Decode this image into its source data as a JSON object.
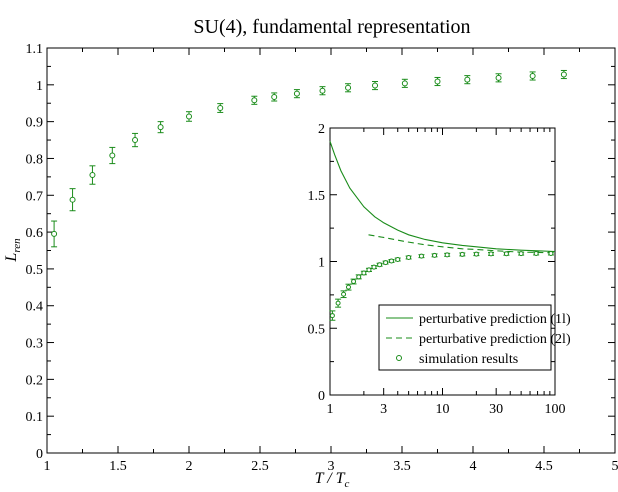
{
  "colors": {
    "series": "#1a8c1a",
    "axis": "#000000",
    "background": "#ffffff"
  },
  "chart_data": [
    {
      "type": "scatter",
      "title": "SU(4), fundamental representation",
      "xlabel_main": "T / T",
      "xlabel_sub": "c",
      "ylabel_main": "L",
      "ylabel_sub": "ren",
      "xlim": [
        1,
        5
      ],
      "ylim": [
        0,
        1.1
      ],
      "x_ticks": [
        1,
        1.5,
        2,
        2.5,
        3,
        3.5,
        4,
        4.5,
        5
      ],
      "x_tick_labels": [
        "1",
        "1.5",
        "2",
        "2.5",
        "3",
        "3.5",
        "4",
        "4.5",
        "5"
      ],
      "y_ticks": [
        0,
        0.1,
        0.2,
        0.3,
        0.4,
        0.5,
        0.6,
        0.7,
        0.8,
        0.9,
        1,
        1.1
      ],
      "y_tick_labels": [
        "0",
        "0.1",
        "0.2",
        "0.3",
        "0.4",
        "0.5",
        "0.6",
        "0.7",
        "0.8",
        "0.9",
        "1",
        "1.1"
      ],
      "series": [
        {
          "name": "simulation results",
          "points": [
            {
              "x": 1.05,
              "y": 0.595,
              "err": 0.035
            },
            {
              "x": 1.18,
              "y": 0.688,
              "err": 0.03
            },
            {
              "x": 1.32,
              "y": 0.755,
              "err": 0.025
            },
            {
              "x": 1.46,
              "y": 0.808,
              "err": 0.022
            },
            {
              "x": 1.62,
              "y": 0.85,
              "err": 0.018
            },
            {
              "x": 1.8,
              "y": 0.885,
              "err": 0.015
            },
            {
              "x": 2.0,
              "y": 0.914,
              "err": 0.013
            },
            {
              "x": 2.22,
              "y": 0.937,
              "err": 0.012
            },
            {
              "x": 2.46,
              "y": 0.958,
              "err": 0.011
            },
            {
              "x": 2.6,
              "y": 0.967,
              "err": 0.011
            },
            {
              "x": 2.76,
              "y": 0.976,
              "err": 0.011
            },
            {
              "x": 2.94,
              "y": 0.984,
              "err": 0.011
            },
            {
              "x": 3.12,
              "y": 0.992,
              "err": 0.011
            },
            {
              "x": 3.31,
              "y": 0.998,
              "err": 0.011
            },
            {
              "x": 3.52,
              "y": 1.004,
              "err": 0.011
            },
            {
              "x": 3.75,
              "y": 1.009,
              "err": 0.011
            },
            {
              "x": 3.96,
              "y": 1.014,
              "err": 0.011
            },
            {
              "x": 4.18,
              "y": 1.019,
              "err": 0.011
            },
            {
              "x": 4.42,
              "y": 1.024,
              "err": 0.011
            },
            {
              "x": 4.64,
              "y": 1.028,
              "err": 0.011
            }
          ]
        }
      ]
    },
    {
      "type": "line",
      "title": "",
      "xscale": "log",
      "xlim": [
        1,
        100
      ],
      "ylim": [
        0,
        2
      ],
      "x_ticks": [
        1,
        3,
        10,
        30,
        100
      ],
      "x_tick_labels": [
        "1",
        "3",
        "10",
        "30",
        "100"
      ],
      "y_ticks": [
        0,
        0.5,
        1,
        1.5,
        2
      ],
      "y_tick_labels": [
        "0",
        "0.5",
        "1",
        "1.5",
        "2"
      ],
      "legend": {
        "position": "lower-right",
        "entries": [
          {
            "label": "perturbative prediction (1l)",
            "style": "solid"
          },
          {
            "label": "perturbative prediction (2l)",
            "style": "dashed"
          },
          {
            "label": "simulation results",
            "style": "marker"
          }
        ]
      },
      "series": [
        {
          "name": "perturbative prediction (1l)",
          "style": "solid",
          "x": [
            1,
            1.1,
            1.25,
            1.5,
            2,
            2.5,
            3,
            4,
            5,
            7,
            10,
            15,
            20,
            30,
            50,
            70,
            100
          ],
          "y": [
            1.9,
            1.8,
            1.68,
            1.55,
            1.41,
            1.335,
            1.29,
            1.235,
            1.2,
            1.165,
            1.14,
            1.12,
            1.11,
            1.095,
            1.085,
            1.08,
            1.075
          ]
        },
        {
          "name": "perturbative prediction (2l)",
          "style": "dashed",
          "x": [
            2.2,
            3,
            4,
            5,
            7,
            10,
            15,
            20,
            30,
            50,
            70,
            100
          ],
          "y": [
            1.2,
            1.18,
            1.16,
            1.145,
            1.125,
            1.11,
            1.095,
            1.09,
            1.08,
            1.07,
            1.068,
            1.065
          ]
        },
        {
          "name": "simulation results",
          "style": "marker",
          "points": [
            {
              "x": 1.05,
              "y": 0.595,
              "err": 0.035
            },
            {
              "x": 1.18,
              "y": 0.688,
              "err": 0.03
            },
            {
              "x": 1.32,
              "y": 0.755,
              "err": 0.025
            },
            {
              "x": 1.46,
              "y": 0.808,
              "err": 0.022
            },
            {
              "x": 1.62,
              "y": 0.85,
              "err": 0.018
            },
            {
              "x": 1.8,
              "y": 0.885,
              "err": 0.015
            },
            {
              "x": 2.0,
              "y": 0.914,
              "err": 0.013
            },
            {
              "x": 2.22,
              "y": 0.937,
              "err": 0.012
            },
            {
              "x": 2.46,
              "y": 0.958,
              "err": 0.011
            },
            {
              "x": 2.76,
              "y": 0.976,
              "err": 0.011
            },
            {
              "x": 3.12,
              "y": 0.992,
              "err": 0.011
            },
            {
              "x": 3.52,
              "y": 1.004,
              "err": 0.011
            },
            {
              "x": 4.0,
              "y": 1.015,
              "err": 0.011
            },
            {
              "x": 5.0,
              "y": 1.03,
              "err": 0.011
            },
            {
              "x": 6.5,
              "y": 1.04,
              "err": 0.011
            },
            {
              "x": 8.5,
              "y": 1.046,
              "err": 0.011
            },
            {
              "x": 11,
              "y": 1.05,
              "err": 0.011
            },
            {
              "x": 15,
              "y": 1.053,
              "err": 0.011
            },
            {
              "x": 20,
              "y": 1.055,
              "err": 0.011
            },
            {
              "x": 27,
              "y": 1.057,
              "err": 0.011
            },
            {
              "x": 37,
              "y": 1.058,
              "err": 0.011
            },
            {
              "x": 50,
              "y": 1.059,
              "err": 0.011
            },
            {
              "x": 68,
              "y": 1.06,
              "err": 0.011
            },
            {
              "x": 92,
              "y": 1.06,
              "err": 0.011
            }
          ]
        }
      ]
    }
  ]
}
